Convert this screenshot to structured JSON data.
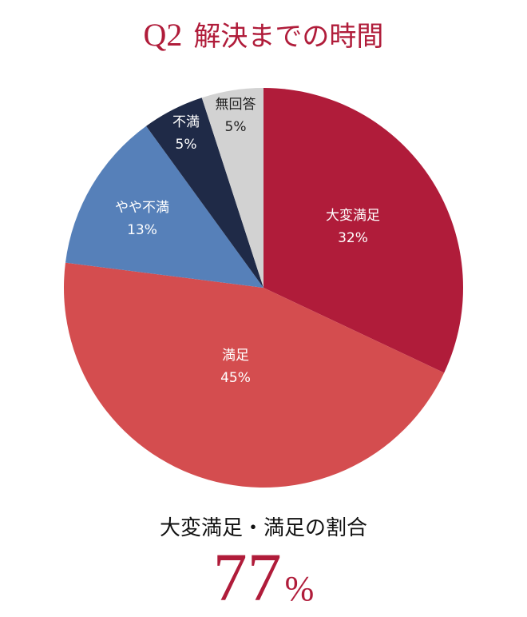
{
  "title": {
    "q": "Q2",
    "text": "解決までの時間"
  },
  "chart_data": {
    "type": "pie",
    "start": "top",
    "direction": "clockwise",
    "slices": [
      {
        "label": "大変満足",
        "value": 32,
        "value_label": "32%",
        "color": "#b01c3a"
      },
      {
        "label": "満足",
        "value": 45,
        "value_label": "45%",
        "color": "#d44d4f"
      },
      {
        "label": "やや不満",
        "value": 13,
        "value_label": "13%",
        "color": "#5680b9"
      },
      {
        "label": "不満",
        "value": 5,
        "value_label": "5%",
        "color": "#1f2a47"
      },
      {
        "label": "無回答",
        "value": 5,
        "value_label": "5%",
        "color": "#d2d2d2"
      }
    ]
  },
  "summary": {
    "label": "大変満足・満足の割合",
    "value": "77",
    "unit": "%"
  }
}
